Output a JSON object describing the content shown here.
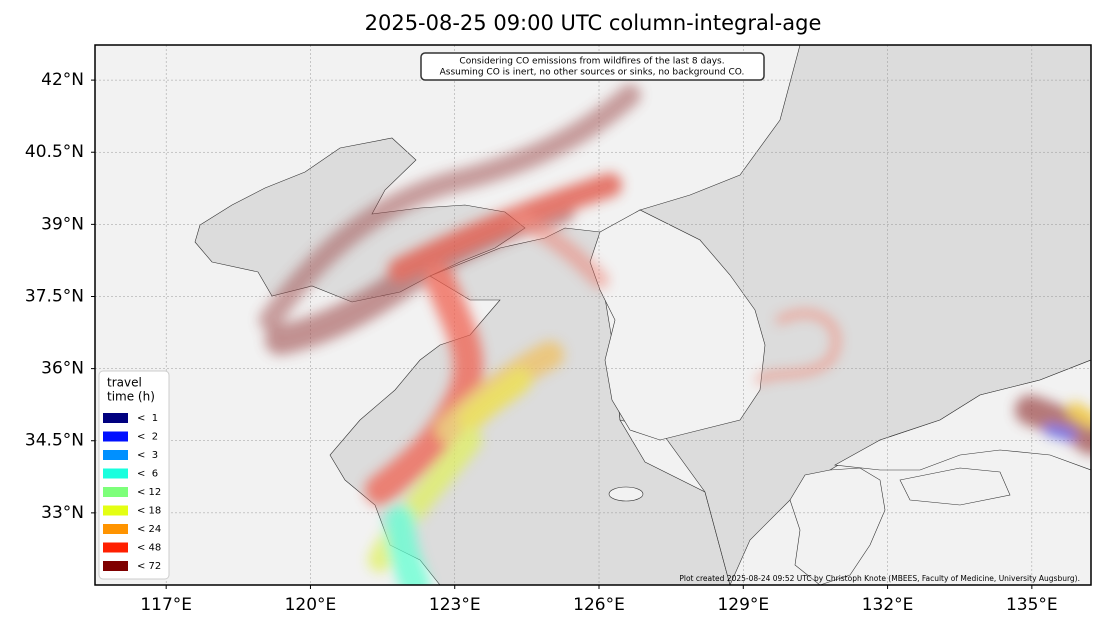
{
  "chart_data": {
    "type": "map",
    "title": "2025-08-25 09:00 UTC column-integral-age",
    "annotation": [
      "Considering CO emissions from wildfires of the last 8 days.",
      "Assuming CO is inert, no other sources or sinks, no background CO."
    ],
    "credit": "Plot created 2025-08-24 09:52 UTC by Christoph Knote (MBEES, Faculty of Medicine, University Augsburg).",
    "xlim": [
      115.52,
      136.23
    ],
    "ylim": [
      31.5,
      42.73
    ],
    "xticks": [
      {
        "value": 117,
        "label": "117°E"
      },
      {
        "value": 120,
        "label": "120°E"
      },
      {
        "value": 123,
        "label": "123°E"
      },
      {
        "value": 126,
        "label": "126°E"
      },
      {
        "value": 129,
        "label": "129°E"
      },
      {
        "value": 132,
        "label": "132°E"
      },
      {
        "value": 135,
        "label": "135°E"
      }
    ],
    "yticks": [
      {
        "value": 33,
        "label": "33°N"
      },
      {
        "value": 34.5,
        "label": "34.5°N"
      },
      {
        "value": 36,
        "label": "36°N"
      },
      {
        "value": 37.5,
        "label": "37.5°N"
      },
      {
        "value": 39,
        "label": "39°N"
      },
      {
        "value": 40.5,
        "label": "40.5°N"
      },
      {
        "value": 42,
        "label": "42°N"
      }
    ],
    "grid": true,
    "legend": {
      "title": [
        "travel",
        "time (h)"
      ],
      "items": [
        {
          "label": "<  1",
          "color": "#00007f"
        },
        {
          "label": "<  2",
          "color": "#0010ff"
        },
        {
          "label": "<  3",
          "color": "#0090ff"
        },
        {
          "label": "<  6",
          "color": "#19ffde"
        },
        {
          "label": "< 12",
          "color": "#7dff7a"
        },
        {
          "label": "< 18",
          "color": "#e4ff13"
        },
        {
          "label": "< 24",
          "color": "#ff9400"
        },
        {
          "label": "< 48",
          "color": "#ff1f00"
        },
        {
          "label": "< 72",
          "color": "#7f0000"
        }
      ]
    }
  }
}
